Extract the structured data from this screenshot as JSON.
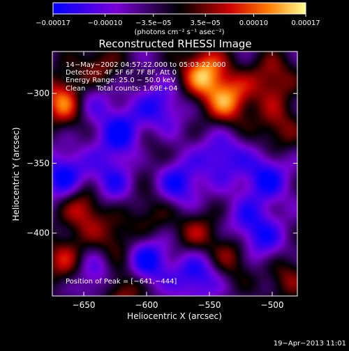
{
  "chart_data": {
    "type": "heatmap",
    "title": "Reconstructed RHESSI Image",
    "xlabel": "Heliocentric X (arcsec)",
    "ylabel": "Heliocentric Y (arcsec)",
    "xlim": [
      -675,
      -480
    ],
    "ylim": [
      -445,
      -270
    ],
    "x_ticks": [
      -650,
      -600,
      -550,
      -500
    ],
    "y_ticks": [
      -400,
      -350,
      -300
    ],
    "x_tick_labels": [
      "−650",
      "−600",
      "−550",
      "−500"
    ],
    "y_tick_labels": [
      "−400",
      "−350",
      "−300"
    ],
    "colorbar": {
      "range": [
        -0.00017,
        0.00017
      ],
      "ticks": [
        -0.00017,
        -0.0001,
        -3.5e-05,
        3.5e-05,
        0.0001,
        0.00017
      ],
      "tick_labels": [
        "−0.00017",
        "−0.00010",
        "−3.5e−05",
        "3.5e−05",
        "0.00010",
        "0.00017"
      ],
      "unit_label": "(photons cm⁻² s⁻¹ asec⁻²)"
    },
    "annotations": [
      "14−May−2002 04:57:22.000 to 05:03:22.000",
      "Detectors: 4F 5F 6F 7F 8F, Att 0",
      "Energy Range: 25.0 − 50.0 keV",
      "Clean     Total counts: 1.69E+04"
    ],
    "peak_label": "Position of Peak = [−641,−444]",
    "blobs": [
      {
        "x": -665,
        "y": -305,
        "v": 1.0
      },
      {
        "x": -640,
        "y": -285,
        "v": 0.7
      },
      {
        "x": -555,
        "y": -285,
        "v": 1.0
      },
      {
        "x": -535,
        "y": -305,
        "v": 0.9
      },
      {
        "x": -500,
        "y": -290,
        "v": 0.6
      },
      {
        "x": -495,
        "y": -325,
        "v": 0.5
      },
      {
        "x": -600,
        "y": -340,
        "v": 0.3
      },
      {
        "x": -650,
        "y": -380,
        "v": 0.8
      },
      {
        "x": -665,
        "y": -420,
        "v": 0.6
      },
      {
        "x": -625,
        "y": -405,
        "v": 0.5
      },
      {
        "x": -595,
        "y": -385,
        "v": 0.4
      },
      {
        "x": -560,
        "y": -400,
        "v": 0.5
      },
      {
        "x": -530,
        "y": -415,
        "v": 0.6
      },
      {
        "x": -490,
        "y": -430,
        "v": 0.5
      },
      {
        "x": -620,
        "y": -440,
        "v": 0.7
      },
      {
        "x": -645,
        "y": -300,
        "v": -0.7
      },
      {
        "x": -620,
        "y": -330,
        "v": -0.8
      },
      {
        "x": -590,
        "y": -310,
        "v": -0.6
      },
      {
        "x": -665,
        "y": -360,
        "v": -0.8
      },
      {
        "x": -630,
        "y": -365,
        "v": -0.6
      },
      {
        "x": -575,
        "y": -365,
        "v": -0.7
      },
      {
        "x": -540,
        "y": -345,
        "v": -0.6
      },
      {
        "x": -505,
        "y": -360,
        "v": -0.7
      },
      {
        "x": -520,
        "y": -395,
        "v": -0.6
      },
      {
        "x": -560,
        "y": -430,
        "v": -0.7
      },
      {
        "x": -600,
        "y": -420,
        "v": -0.8
      },
      {
        "x": -640,
        "y": -430,
        "v": -0.6
      },
      {
        "x": -505,
        "y": -410,
        "v": -0.5
      }
    ]
  },
  "timestamp": "19−Apr−2013 11:01"
}
